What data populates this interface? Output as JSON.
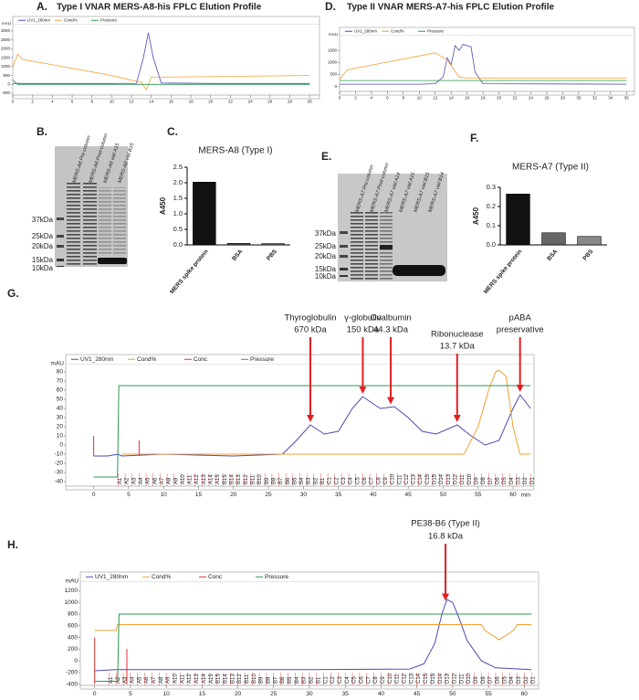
{
  "chart_data": [
    {
      "type": "line",
      "panel": "A.",
      "title": "Type I VNAR MERS-A8-his FPLC Elution Profile",
      "ylabel": "mAU",
      "xlim": [
        0,
        31
      ],
      "xticks": [
        0,
        2,
        4,
        6,
        8,
        10,
        12,
        14,
        16,
        18,
        20,
        22,
        24,
        26,
        28,
        30
      ],
      "ylim": [
        -600,
        3200
      ],
      "yticks": [
        -500,
        0,
        500,
        1000,
        1500,
        2000,
        2500,
        3000
      ],
      "series": [
        {
          "name": "UV1_280nm",
          "color": "#4a4ab8",
          "x": [
            0,
            4,
            10,
            12.5,
            13.2,
            13.7,
            14.2,
            15,
            20,
            30
          ],
          "values": [
            50,
            50,
            50,
            60,
            1500,
            2900,
            1500,
            80,
            50,
            50
          ]
        },
        {
          "name": "Cond%",
          "color": "#f0a030",
          "x": [
            0,
            0.5,
            1,
            3,
            10,
            13,
            13.5,
            14,
            30
          ],
          "values": [
            1000,
            1700,
            1400,
            1200,
            500,
            100,
            -300,
            400,
            500
          ]
        },
        {
          "name": "Pressure",
          "color": "#2a9a50",
          "x": [
            0,
            0.5,
            30
          ],
          "values": [
            250,
            0,
            0
          ]
        }
      ]
    },
    {
      "type": "bar",
      "panel": "C.",
      "title": "MERS-A8 (Type I)",
      "ylabel": "A450",
      "categories": [
        "MERS spike protein",
        "BSA",
        "PBS"
      ],
      "values": [
        2.02,
        0.05,
        0.04
      ],
      "colors": [
        "#111111",
        "#555555",
        "#666666"
      ],
      "ylim": [
        0,
        2.5
      ],
      "yticks": [
        {
          "value": 0,
          "label": "0.0"
        },
        0.5,
        {
          "value": 1,
          "label": "1.0"
        },
        1.5,
        {
          "value": 2,
          "label": "2.0"
        },
        2.5
      ]
    },
    {
      "type": "line",
      "panel": "D.",
      "title": "Type II VNAR MERS-A7-his FPLC Elution Profile",
      "ylabel": "mAU",
      "xlim": [
        0,
        37
      ],
      "xticks": [
        0,
        2,
        4,
        6,
        8,
        10,
        12,
        14,
        16,
        18,
        20,
        22,
        24,
        26,
        28,
        30,
        32,
        34,
        36
      ],
      "ylim": [
        -200,
        2000
      ],
      "yticks": [
        0,
        500,
        1000,
        1500
      ],
      "series": [
        {
          "name": "UV1_280nm",
          "color": "#4a4ab8",
          "x": [
            0,
            10,
            12,
            13,
            13.5,
            14,
            14.5,
            15,
            15.5,
            16,
            16.5,
            17,
            18,
            36
          ],
          "values": [
            100,
            100,
            120,
            400,
            1200,
            900,
            1700,
            1500,
            1750,
            1700,
            1650,
            600,
            120,
            100
          ]
        },
        {
          "name": "Cond%",
          "color": "#f0a030",
          "x": [
            0,
            1,
            12,
            13.5,
            15,
            16,
            36
          ],
          "values": [
            300,
            700,
            1400,
            1100,
            400,
            350,
            350
          ]
        },
        {
          "name": "Pressure",
          "color": "#2a9a50",
          "x": [
            0,
            36
          ],
          "values": [
            250,
            250
          ]
        }
      ]
    },
    {
      "type": "bar",
      "panel": "F.",
      "title": "MERS-A7 (Type II)",
      "ylabel": "A450",
      "categories": [
        "MERS spike protein",
        "BSA",
        "PBS"
      ],
      "values": [
        0.265,
        0.063,
        0.044
      ],
      "colors": [
        "#111111",
        "#666666",
        "#888888"
      ],
      "ylim": [
        0,
        0.3
      ],
      "yticks": [
        {
          "value": 0,
          "label": "0.0"
        },
        0.1,
        0.2,
        0.3
      ]
    },
    {
      "type": "line",
      "panel": "G.",
      "ylabel": "mAU",
      "xlabel": "min",
      "xlim": [
        -4,
        63
      ],
      "xticks": [
        0,
        5,
        10,
        15,
        20,
        25,
        30,
        35,
        40,
        45,
        50,
        55,
        60
      ],
      "ylim": [
        -45,
        85
      ],
      "yticks": [
        -40,
        -30,
        -20,
        -10,
        0,
        10,
        20,
        30,
        40,
        50,
        60,
        70,
        80
      ],
      "series": [
        {
          "name": "UV1_280nm",
          "color": "#4a4ab8",
          "x": [
            0,
            2,
            3.5,
            4,
            10,
            20,
            27,
            29,
            31,
            33,
            35,
            37,
            38.5,
            40,
            41,
            43,
            45,
            47,
            49,
            52,
            54,
            56,
            58,
            60,
            61,
            62.5
          ],
          "values": [
            -12,
            -12,
            -10,
            -12,
            -10,
            -12,
            -10,
            5,
            22,
            12,
            15,
            40,
            53,
            45,
            40,
            42,
            30,
            15,
            12,
            22,
            10,
            0,
            5,
            40,
            55,
            40
          ]
        },
        {
          "name": "Cond%",
          "color": "#f0a030",
          "x": [
            4,
            53,
            55,
            56.5,
            57.5,
            58,
            59,
            60,
            61,
            62.5
          ],
          "values": [
            -10,
            -10,
            20,
            60,
            80,
            82,
            75,
            20,
            -10,
            -10
          ]
        },
        {
          "name": "Conc",
          "color": "#e03030",
          "x": [
            0,
            0,
            3,
            6.5,
            6.5
          ],
          "values": [
            -12,
            10,
            null,
            -12,
            5
          ]
        },
        {
          "name": "Pressure",
          "color": "#2a9a50",
          "x": [
            0,
            3.4,
            3.6,
            62.5
          ],
          "values": [
            -35,
            -35,
            65,
            65
          ]
        }
      ],
      "annotations": [
        {
          "lines": [
            "Thyroglobulin",
            "670 kDa"
          ],
          "x": 31
        },
        {
          "lines": [
            "γ-globulin",
            "150 kDa"
          ],
          "x": 38.5
        },
        {
          "lines": [
            "Ovalbumin",
            "44.3 kDa"
          ],
          "x": 42.5
        },
        {
          "lines": [
            "Ribonuclease",
            "13.7 kDa"
          ],
          "x": 52
        },
        {
          "lines": [
            "pABA",
            "preservative"
          ],
          "x": 61
        }
      ],
      "fractions": [
        "A1",
        "A2",
        "A3",
        "A4",
        "A5",
        "A6",
        "A7",
        "A8",
        "A9",
        "A10",
        "A11",
        "A12",
        "A13",
        "A14",
        "A15",
        "B15",
        "B14",
        "B13",
        "B12",
        "B11",
        "B10",
        "B9",
        "B8",
        "B7",
        "B6",
        "B5",
        "B4",
        "B3",
        "B2",
        "B1",
        "C1",
        "C2",
        "C3",
        "C4",
        "C5",
        "C6",
        "C7",
        "C8",
        "C9",
        "C10",
        "C11",
        "C12",
        "C13",
        "C14",
        "C15",
        "D15",
        "D14",
        "D13",
        "D12",
        "D11",
        "D10",
        "D9",
        "D8",
        "D7",
        "D6",
        "D5",
        "D4",
        "D3",
        "D2",
        "D1"
      ]
    },
    {
      "type": "line",
      "panel": "H.",
      "ylabel": "mAU",
      "xlim": [
        -2,
        62
      ],
      "xticks": [
        0,
        5,
        10,
        15,
        20,
        25,
        30,
        35,
        40,
        45,
        50,
        55,
        60
      ],
      "ylim": [
        -420,
        1300
      ],
      "yticks": [
        -400,
        -200,
        0,
        200,
        400,
        600,
        800,
        1000,
        1200
      ],
      "series": [
        {
          "name": "UV1_280nm",
          "color": "#4a4ab8",
          "x": [
            0,
            3,
            10,
            30,
            44,
            46,
            47.5,
            48.5,
            49.2,
            50,
            51,
            52,
            54,
            56,
            61
          ],
          "values": [
            -170,
            -150,
            -150,
            -150,
            -140,
            -50,
            300,
            800,
            1050,
            1000,
            700,
            350,
            0,
            -120,
            -150
          ]
        },
        {
          "name": "Cond%",
          "color": "#f0a030",
          "x": [
            0,
            3,
            3.2,
            54,
            54.5,
            55.5,
            56.5,
            57.5,
            58.5,
            59,
            61
          ],
          "values": [
            520,
            520,
            620,
            620,
            520,
            440,
            360,
            440,
            520,
            620,
            620
          ]
        },
        {
          "name": "Conc",
          "color": "#e03030",
          "x": [
            0,
            0,
            2,
            4.5,
            4.5
          ],
          "values": [
            -400,
            400,
            null,
            -400,
            200
          ]
        },
        {
          "name": "Pressure",
          "color": "#2a9a50",
          "x": [
            0,
            3.2,
            3.4,
            61
          ],
          "values": [
            -350,
            -350,
            800,
            800
          ]
        }
      ],
      "annotations": [
        {
          "lines": [
            "PE38-B6 (Type II)",
            "16.8 kDa"
          ],
          "x": 49
        }
      ],
      "fractions": [
        "A1",
        "A2",
        "A3",
        "A4",
        "A5",
        "A6",
        "A7",
        "A8",
        "A9",
        "A10",
        "A11",
        "A12",
        "A13",
        "A14",
        "A15",
        "B15",
        "B14",
        "B13",
        "B12",
        "B11",
        "B10",
        "B9",
        "B8",
        "B7",
        "B6",
        "B5",
        "B4",
        "B3",
        "B2",
        "B1",
        "C1",
        "C2",
        "C3",
        "C4",
        "C5",
        "C6",
        "C7",
        "C8",
        "C9",
        "C10",
        "C11",
        "C12",
        "C13",
        "C14",
        "C15",
        "D15",
        "D14",
        "D13",
        "D12",
        "D11",
        "D10",
        "D9",
        "D8",
        "D7",
        "D6",
        "D5",
        "D4",
        "D3",
        "D2",
        "D1"
      ]
    }
  ],
  "gels": [
    {
      "panel": "B.",
      "lanes": [
        "MERS-A8 Pre-column",
        "MERS-A8 Post-column",
        "MERS-A8 vial A15",
        "MERS-A8 vial B15"
      ],
      "markers": [
        "37kDa",
        "25kDa",
        "20kDa",
        "15kDa",
        "10kDa"
      ]
    },
    {
      "panel": "E.",
      "lanes": [
        "MERS-A7 Pre-column",
        "MERS-A7 Post-column",
        "MERS-A7 vial A14",
        "MERS-A7 vial A15",
        "MERS-A7 vial B15",
        "MERS-A7 vial B14"
      ],
      "markers": [
        "37kDa",
        "25kDa",
        "20kDa",
        "15kDa",
        "10kDa"
      ]
    }
  ]
}
